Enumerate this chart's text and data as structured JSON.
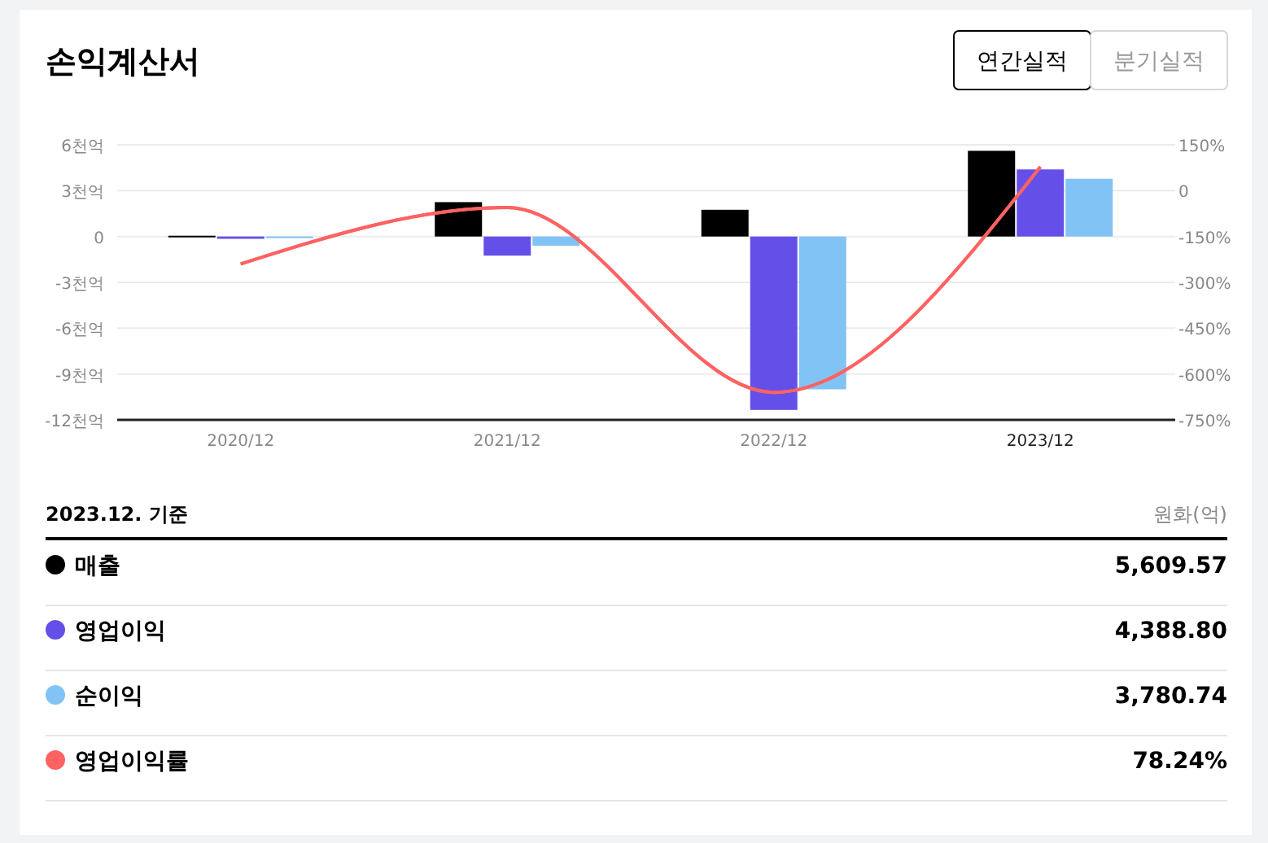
{
  "chart_data": {
    "type": "bar",
    "title": "손익계산서",
    "annotations": [
      "연간실적",
      "분기실적",
      "2023.12. 기준",
      "원화(억)",
      "5,609.57",
      "4,388.80",
      "3,780.74",
      "78.24%"
    ],
    "categories": [
      "2020/12",
      "2021/12",
      "2022/12",
      "2023/12"
    ],
    "series": [
      {
        "name": "매출",
        "color": "#000000",
        "values": [
          0.05,
          2.25,
          1.75,
          5.61
        ]
      },
      {
        "name": "영업이익",
        "color": "#6450e8",
        "values": [
          -0.15,
          -1.25,
          -11.35,
          4.39
        ]
      },
      {
        "name": "순이익",
        "color": "#82c3f5",
        "values": [
          -0.1,
          -0.6,
          -10,
          3.78
        ]
      },
      {
        "name": "영업이익률",
        "type": "line",
        "axis": "y2",
        "color": "#ff6262",
        "values": [
          -240,
          -55,
          -660,
          78
        ]
      }
    ],
    "ylim": [
      -12,
      6
    ],
    "yticks": [
      {
        "value": 6,
        "label": "6천억"
      },
      {
        "value": 3,
        "label": "3천억"
      },
      0,
      {
        "value": -3,
        "label": "-3천억"
      },
      {
        "value": -6,
        "label": "-6천억"
      },
      {
        "value": -9,
        "label": "-9천억"
      },
      {
        "value": -12,
        "label": "-12천억"
      }
    ],
    "y2lim": [
      -750,
      150
    ],
    "y2ticks": [
      {
        "value": 150,
        "label": "150%"
      },
      0,
      {
        "value": -150,
        "label": "-150%"
      },
      {
        "value": -300,
        "label": "-300%"
      },
      {
        "value": -450,
        "label": "-450%"
      },
      {
        "value": -600,
        "label": "-600%"
      },
      {
        "value": -750,
        "label": "-750%"
      }
    ],
    "grid": "y",
    "legend": "bottom"
  }
}
